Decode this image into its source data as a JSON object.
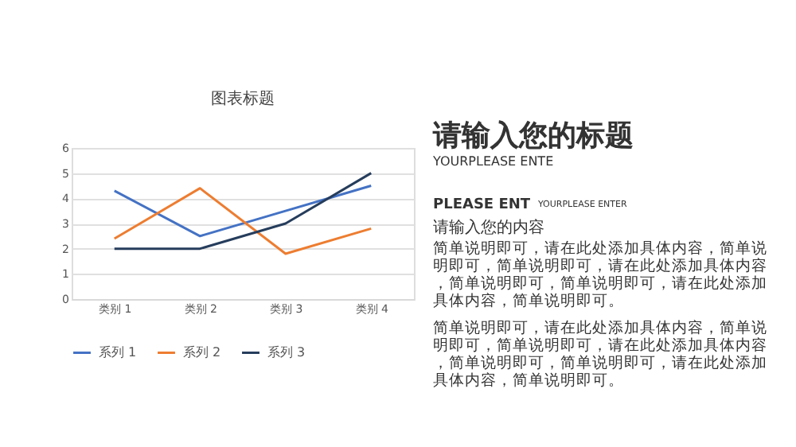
{
  "chart_data": {
    "type": "line",
    "title": "图表标题",
    "categories": [
      "类别 1",
      "类别 2",
      "类别 3",
      "类别 4"
    ],
    "series": [
      {
        "name": "系列 1",
        "color": "#4472c4",
        "values": [
          4.3,
          2.5,
          3.5,
          4.5
        ]
      },
      {
        "name": "系列 2",
        "color": "#ed7d31",
        "values": [
          2.4,
          4.4,
          1.8,
          2.8
        ]
      },
      {
        "name": "系列 3",
        "color": "#263d5c",
        "values": [
          2,
          2,
          3,
          5
        ]
      }
    ],
    "ylim": [
      0,
      6
    ],
    "yticks": [
      0,
      1,
      2,
      3,
      4,
      5,
      6
    ],
    "grid": "y",
    "legend": "bottom",
    "marker": "none",
    "line_style": "solid",
    "annotations": [
      "请输入您的标题",
      "YOURPLEASE ENTE",
      "PLEASE ENT",
      "YOURPLEASE ENTER",
      "请输入您的内容",
      "简单说明即可，请在此处添加具体内容，简单说明即可，简单说明即可，请在此处添加具体内容，简单说明即可，简单说明即可，请在此处添加具体内容，简单说明即可。",
      "简单说明即可，请在此处添加具体内容，简单说明即可，简单说明即可，请在此处添加具体内容，简单说明即可，简单说明即可，请在此处添加具体内容，简单说明即可。"
    ]
  }
}
